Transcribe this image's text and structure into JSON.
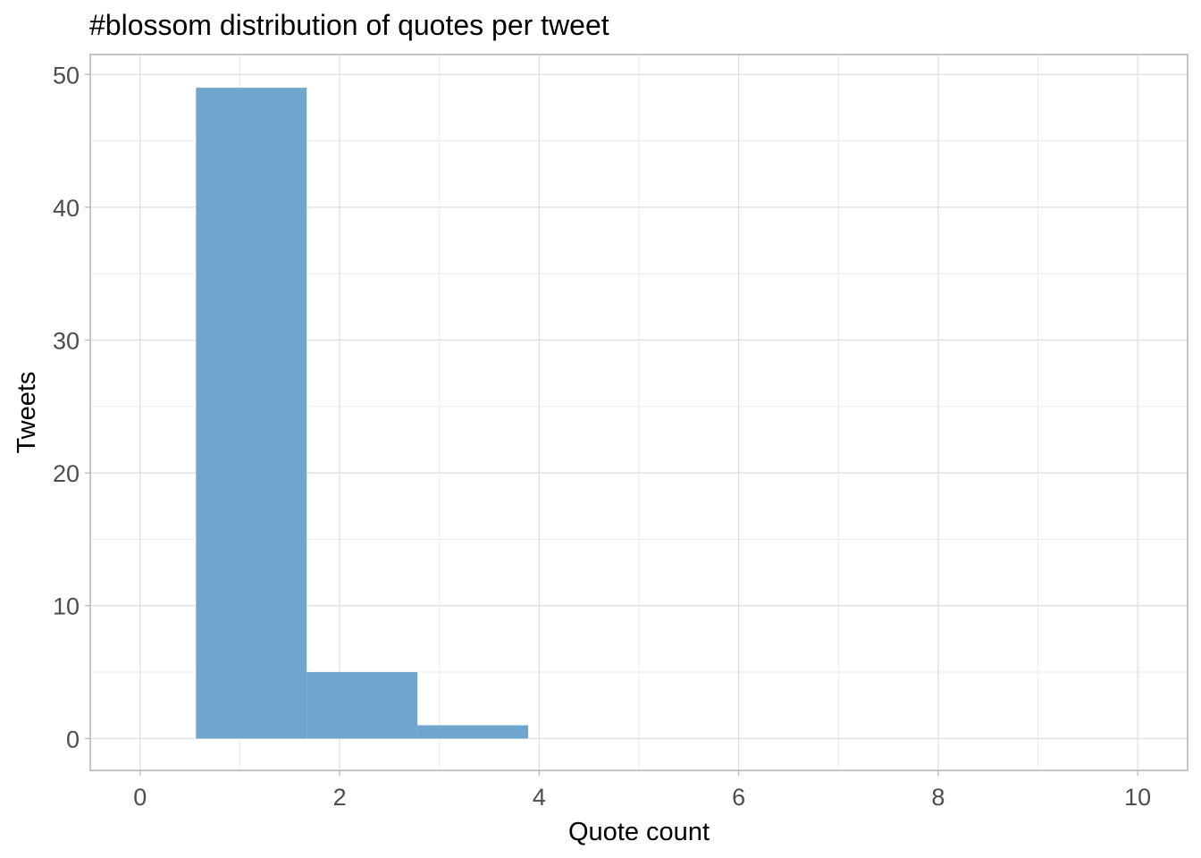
{
  "chart_data": {
    "type": "bar",
    "title": "#blossom distribution of quotes per tweet",
    "xlabel": "Quote count",
    "ylabel": "Tweets",
    "xlim": [
      -0.5,
      10.5
    ],
    "ylim": [
      -2.4,
      51.5
    ],
    "x_ticks": [
      0,
      2,
      4,
      6,
      8,
      10
    ],
    "y_ticks": [
      0,
      10,
      20,
      30,
      40,
      50
    ],
    "grid": true,
    "bar_color": "#6EA6CD",
    "bins": [
      {
        "x_start": 0.56,
        "x_end": 1.67,
        "count": 49
      },
      {
        "x_start": 1.67,
        "x_end": 2.78,
        "count": 5
      },
      {
        "x_start": 2.78,
        "x_end": 3.89,
        "count": 1
      }
    ]
  }
}
